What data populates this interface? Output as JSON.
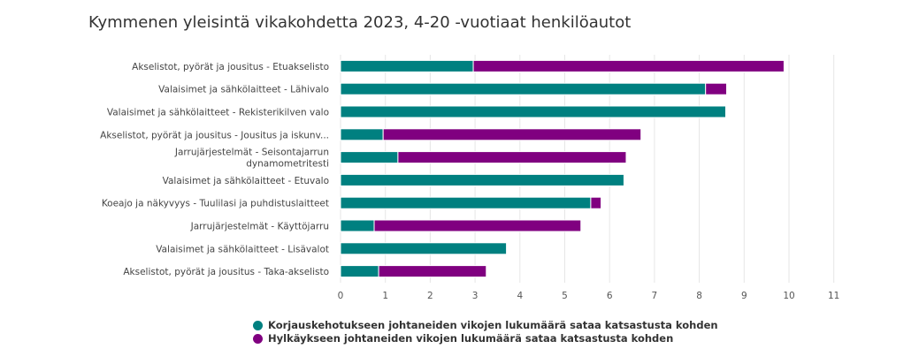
{
  "chart_data": {
    "type": "bar",
    "stacked": true,
    "orientation": "horizontal",
    "title": "Kymmenen yleisintä vikakohdetta 2023, 4-20 -vuotiaat henkilöautot",
    "categories": [
      "Akselistot, pyörät ja jousitus - Etuakselisto",
      "Valaisimet ja sähkölaitteet - Lähivalo",
      "Valaisimet ja sähkölaitteet - Rekisterikilven valo",
      "Akselistot, pyörät ja jousitus - Jousitus ja iskunv...",
      [
        "Jarrujärjestelmät - Seisontajarrun",
        "dynamometritesti"
      ],
      "Valaisimet ja sähkölaitteet - Etuvalo",
      "Koeajo ja näkyvyys - Tuulilasi ja puhdistuslaitteet",
      "Jarrujärjestelmät - Käyttöjarru",
      "Valaisimet ja sähkölaitteet - Lisävalot",
      "Akselistot, pyörät ja jousitus - Taka-akselisto"
    ],
    "series": [
      {
        "name": "Korjauskehotukseen johtaneiden vikojen lukumäärä sataa katsastusta kohden",
        "color": "#008080",
        "values": [
          2.96,
          8.14,
          8.59,
          0.95,
          1.28,
          6.32,
          5.58,
          0.75,
          3.7,
          0.85
        ]
      },
      {
        "name": "Hylkäykseen johtaneiden vikojen lukumäärä sataa katsastusta kohden",
        "color": "#800080",
        "values": [
          6.93,
          0.47,
          0,
          5.75,
          5.09,
          0,
          0.23,
          4.61,
          0,
          2.4
        ]
      }
    ],
    "xlim": [
      0,
      11
    ],
    "xticks": [
      "0",
      "1",
      "2",
      "3",
      "4",
      "5",
      "6",
      "7",
      "8",
      "9",
      "10",
      "11"
    ],
    "grid": true,
    "legend": "bottom"
  }
}
